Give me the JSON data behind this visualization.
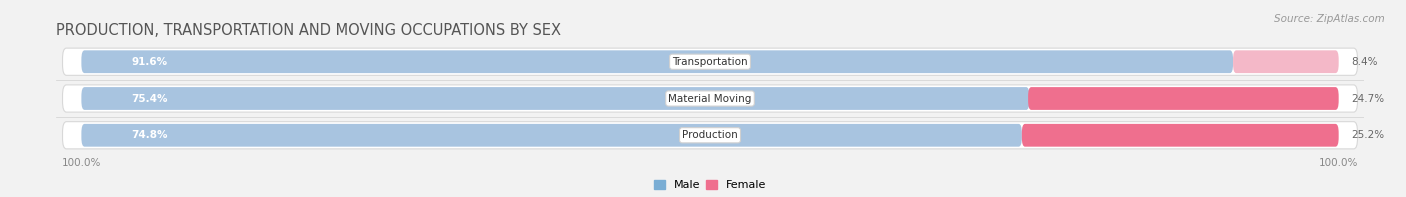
{
  "title": "PRODUCTION, TRANSPORTATION AND MOVING OCCUPATIONS BY SEX",
  "source_text": "Source: ZipAtlas.com",
  "categories": [
    "Transportation",
    "Material Moving",
    "Production"
  ],
  "male_values": [
    91.6,
    75.4,
    74.8
  ],
  "female_values": [
    8.4,
    24.7,
    25.2
  ],
  "male_color": "#a8c4e0",
  "male_color_dark": "#7aadd4",
  "female_color_transport": "#f4b8c8",
  "female_color_other": "#ef6f8e",
  "row_bg_color": "#e8e8e8",
  "row_line_color": "#d0d0d0",
  "title_fontsize": 10.5,
  "source_fontsize": 7.5,
  "tick_label": "100.0%",
  "figsize": [
    14.06,
    1.97
  ],
  "dpi": 100
}
